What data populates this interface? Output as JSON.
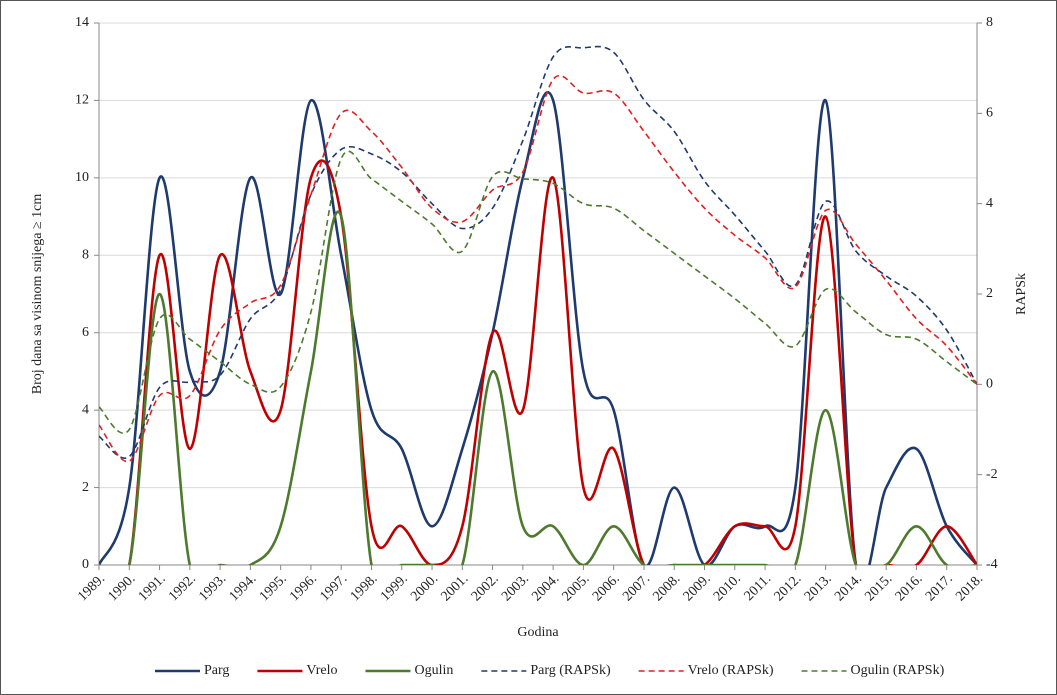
{
  "chart_data": {
    "type": "line",
    "smooth": true,
    "grid": true,
    "x_label": "Godina",
    "y_label": "Broj dana sa visinom snijega ≥ 1cm",
    "y2_label": "RAPSk",
    "categories": [
      "1989.",
      "1990.",
      "1991.",
      "1992.",
      "1993.",
      "1994.",
      "1995.",
      "1996.",
      "1997.",
      "1998.",
      "1999.",
      "2000.",
      "2001.",
      "2002.",
      "2003.",
      "2004.",
      "2005.",
      "2006.",
      "2007.",
      "2008.",
      "2009.",
      "2010.",
      "2011.",
      "2012.",
      "2013.",
      "2014.",
      "2015.",
      "2016.",
      "2017.",
      "2018."
    ],
    "ylim": [
      0,
      14
    ],
    "yticks": [
      0,
      2,
      4,
      6,
      8,
      10,
      12,
      14
    ],
    "y2lim": [
      -4,
      8
    ],
    "y2ticks": [
      -4,
      -2,
      0,
      2,
      4,
      6,
      8
    ],
    "legend": "bottom",
    "series": [
      {
        "name": "Parg",
        "color": "#1f3a6e",
        "dash": "solid",
        "axis": "y",
        "values": [
          0,
          2,
          10,
          5,
          5,
          10,
          7,
          12,
          8,
          4,
          3,
          1,
          3,
          6,
          10,
          12,
          5,
          4,
          0,
          2,
          0,
          1,
          1,
          2,
          12,
          0,
          2,
          3,
          1,
          0
        ]
      },
      {
        "name": "Vrelo",
        "color": "#c00000",
        "dash": "solid",
        "axis": "y",
        "values": [
          0,
          0,
          8,
          3,
          8,
          5,
          4,
          10,
          9,
          1,
          1,
          0,
          1,
          6,
          4,
          10,
          2,
          3,
          0,
          0,
          0,
          1,
          1,
          1,
          9,
          0,
          0,
          0,
          1,
          0
        ]
      },
      {
        "name": "Ogulin",
        "color": "#4e7a2e",
        "dash": "solid",
        "axis": "y",
        "values": [
          0,
          0,
          7,
          0,
          0,
          0,
          1,
          5,
          9,
          0,
          0,
          0,
          0,
          5,
          1,
          1,
          0,
          1,
          0,
          0,
          0,
          0,
          0,
          0,
          4,
          0,
          0,
          1,
          0,
          0
        ]
      },
      {
        "name": "Parg (RAPSk)",
        "color": "#1f3a6e",
        "dash": "dashed",
        "axis": "y2",
        "values": [
          -1.15,
          -1.6,
          -0.07,
          0.05,
          0.2,
          1.45,
          2.1,
          4.2,
          5.2,
          5.1,
          4.7,
          4.0,
          3.45,
          3.9,
          5.4,
          7.25,
          7.45,
          7.35,
          6.3,
          5.6,
          4.5,
          3.75,
          2.95,
          2.2,
          4.05,
          2.95,
          2.4,
          1.95,
          1.2,
          0
        ]
      },
      {
        "name": "Vrelo (RAPSk)",
        "color": "#e02020",
        "dash": "dashed",
        "axis": "y2",
        "values": [
          -0.9,
          -1.7,
          -0.25,
          -0.25,
          1.2,
          1.8,
          2.2,
          4.2,
          6.0,
          5.6,
          4.8,
          3.9,
          3.6,
          4.3,
          4.7,
          6.75,
          6.45,
          6.45,
          5.6,
          4.7,
          3.9,
          3.3,
          2.8,
          2.15,
          3.85,
          3.1,
          2.3,
          1.45,
          0.85,
          0
        ]
      },
      {
        "name": "Ogulin (RAPSk)",
        "color": "#4e7a2e",
        "dash": "dashed",
        "axis": "y2",
        "values": [
          -0.5,
          -1.0,
          1.45,
          1.0,
          0.5,
          0.0,
          -0.05,
          1.6,
          5.0,
          4.55,
          4.05,
          3.55,
          2.95,
          4.6,
          4.55,
          4.45,
          4.0,
          3.9,
          3.4,
          2.9,
          2.4,
          1.9,
          1.35,
          0.85,
          2.1,
          1.6,
          1.1,
          1.0,
          0.5,
          0
        ]
      }
    ]
  }
}
